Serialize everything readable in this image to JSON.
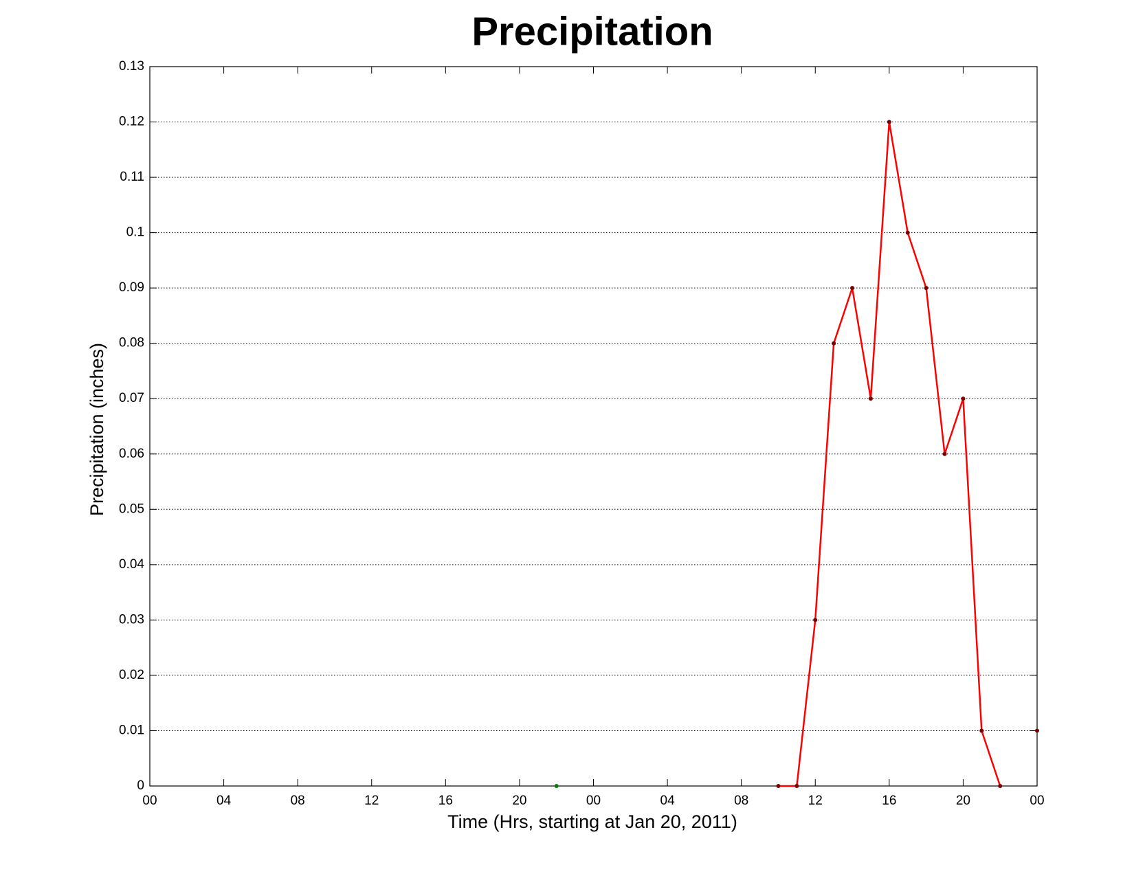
{
  "chart_data": {
    "type": "line",
    "title": "Precipitation",
    "x_label": "Time (Hrs, starting at Jan 20, 2011)",
    "y_label": "Precipitation (inches)",
    "series": [
      {
        "color": "#ff0000",
        "marker_color": "#7a0000",
        "line": true,
        "x": [
          34,
          35,
          36,
          37,
          38,
          39,
          40,
          41,
          42,
          43,
          44,
          45,
          46,
          47,
          48
        ],
        "values": [
          0,
          0,
          0.03,
          0.08,
          0.09,
          0.07,
          0.12,
          0.1,
          0.09,
          0.06,
          0.07,
          0.01,
          0,
          null,
          0.01
        ]
      },
      {
        "color": "#008000",
        "marker_color": "#008000",
        "line": false,
        "x": [
          22
        ],
        "values": [
          0
        ]
      }
    ],
    "xlim": [
      0,
      48
    ],
    "xticks": [
      {
        "value": 0,
        "label": "00"
      },
      {
        "value": 4,
        "label": "04"
      },
      {
        "value": 8,
        "label": "08"
      },
      12,
      16,
      20,
      {
        "value": 24,
        "label": "00"
      },
      {
        "value": 28,
        "label": "04"
      },
      {
        "value": 32,
        "label": "08"
      },
      {
        "value": 36,
        "label": "12"
      },
      {
        "value": 40,
        "label": "16"
      },
      {
        "value": 44,
        "label": "20"
      },
      {
        "value": 48,
        "label": "00"
      }
    ],
    "ylim": [
      0,
      0.13
    ],
    "yticks": [
      0,
      0.01,
      0.02,
      0.03,
      0.04,
      0.05,
      0.06,
      0.07,
      0.08,
      0.09,
      0.1,
      0.11,
      0.12,
      0.13
    ],
    "grid": true
  }
}
